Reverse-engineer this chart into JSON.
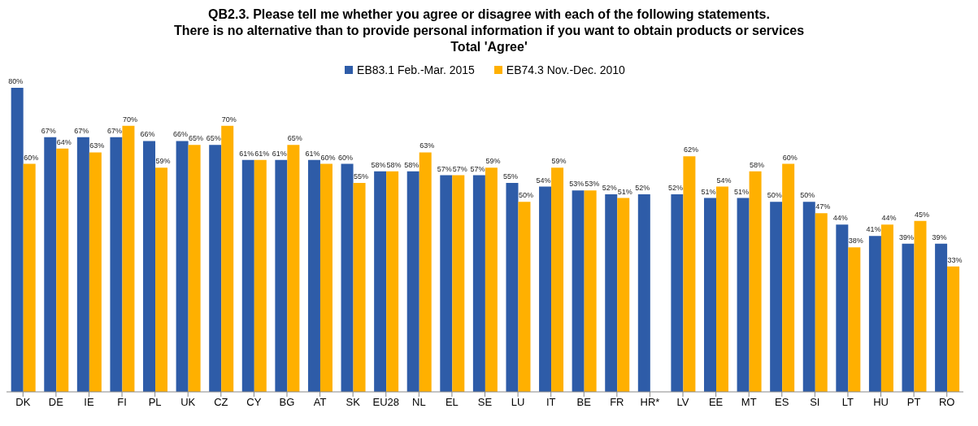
{
  "chart_data": {
    "type": "bar",
    "title": "QB2.3. Please tell me whether you agree or disagree with each of the following statements.\nThere is no alternative than to provide personal information if you want to obtain products or services",
    "subtitle": "Total 'Agree'",
    "categories": [
      "DK",
      "DE",
      "IE",
      "FI",
      "PL",
      "UK",
      "CZ",
      "CY",
      "BG",
      "AT",
      "SK",
      "EU28",
      "NL",
      "EL",
      "SE",
      "LU",
      "IT",
      "BE",
      "FR",
      "HR*",
      "LV",
      "EE",
      "MT",
      "ES",
      "SI",
      "LT",
      "HU",
      "PT",
      "RO"
    ],
    "series": [
      {
        "name": "EB83.1 Feb.-Mar. 2015",
        "color": "#2e5ca8",
        "values": [
          80,
          67,
          67,
          67,
          66,
          66,
          65,
          61,
          61,
          61,
          60,
          58,
          58,
          57,
          57,
          55,
          54,
          53,
          52,
          52,
          52,
          51,
          51,
          50,
          50,
          44,
          41,
          39,
          39
        ],
        "value_labels": [
          "80%",
          "67%",
          "67%",
          "67%",
          "66%",
          "66%",
          "65%",
          "61%",
          "61%",
          "61%",
          "60%",
          "58%",
          "58%",
          "57%",
          "57%",
          "55%",
          "54%",
          "53%",
          "52%",
          "52%",
          "52%",
          "51%",
          "51%",
          "50%",
          "50%",
          "44%",
          "41%",
          "39%",
          "39%"
        ]
      },
      {
        "name": "EB74.3 Nov.-Dec. 2010",
        "color": "#ffb000",
        "values": [
          60,
          64,
          63,
          70,
          59,
          65,
          70,
          61,
          65,
          60,
          55,
          58,
          63,
          57,
          59,
          50,
          59,
          53,
          51,
          null,
          62,
          54,
          58,
          60,
          47,
          38,
          44,
          45,
          33
        ],
        "value_labels": [
          "60%",
          "64%",
          "63%",
          "70%",
          "59%",
          "65%",
          "70%",
          "61%",
          "65%",
          "60%",
          "55%",
          "58%",
          "63%",
          "57%",
          "59%",
          "50%",
          "59%",
          "53%",
          "51%",
          null,
          "62%",
          "54%",
          "58%",
          "60%",
          "47%",
          "38%",
          "44%",
          "45%",
          "33%"
        ]
      }
    ],
    "legend": "top",
    "grid": false
  }
}
